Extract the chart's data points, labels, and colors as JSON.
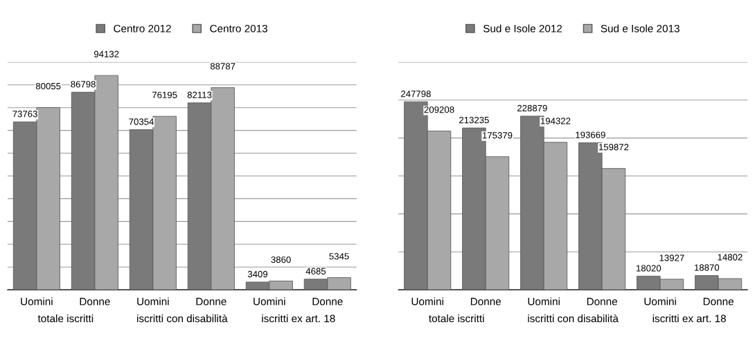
{
  "chart_data": [
    {
      "type": "bar",
      "categories": [
        "Uomini",
        "Donne",
        "Uomini",
        "Donne",
        "Uomini",
        "Donne"
      ],
      "series": [
        {
          "name": "Centro 2012",
          "color": "#7a7a7a",
          "values": [
            73763,
            86798,
            70354,
            82113,
            3409,
            4685
          ]
        },
        {
          "name": "Centro 2013",
          "color": "#a8a8a8",
          "values": [
            80055,
            94132,
            76195,
            88787,
            3860,
            5345
          ]
        }
      ],
      "annotations": [
        "totale iscritti",
        "iscritti con disabilità",
        "iscritti ex art. 18"
      ],
      "ylim": [
        0,
        100000
      ],
      "yticks": [
        {
          "value": 0,
          "label": null
        },
        {
          "value": 10000,
          "label": null
        },
        {
          "value": 20000,
          "label": null
        },
        {
          "value": 30000,
          "label": null
        },
        {
          "value": 40000,
          "label": null
        },
        {
          "value": 50000,
          "label": null
        },
        {
          "value": 60000,
          "label": null
        },
        {
          "value": 70000,
          "label": null
        },
        {
          "value": 80000,
          "label": null
        },
        {
          "value": 90000,
          "label": null
        },
        {
          "value": 100000,
          "label": null
        }
      ],
      "tick_labels": "x",
      "grid": "y",
      "legend": "top",
      "data_labels": true
    },
    {
      "type": "bar",
      "categories": [
        "Uomini",
        "Donne",
        "Uomini",
        "Donne",
        "Uomini",
        "Donne"
      ],
      "series": [
        {
          "name": "Sud e Isole 2012",
          "color": "#7a7a7a",
          "values": [
            247798,
            213235,
            228879,
            193669,
            18020,
            18870
          ]
        },
        {
          "name": "Sud e Isole 2013",
          "color": "#a8a8a8",
          "values": [
            209208,
            175379,
            194322,
            159872,
            13927,
            14802
          ]
        }
      ],
      "annotations": [
        "totale iscritti",
        "iscritti con disabilità",
        "iscritti ex art. 18"
      ],
      "ylim": [
        0,
        300000
      ],
      "yticks": [
        {
          "value": 0,
          "label": null
        },
        {
          "value": 50000,
          "label": null
        },
        {
          "value": 100000,
          "label": null
        },
        {
          "value": 150000,
          "label": null
        },
        {
          "value": 200000,
          "label": null
        },
        {
          "value": 250000,
          "label": null
        },
        {
          "value": 300000,
          "label": null
        }
      ],
      "tick_labels": "x",
      "grid": "y",
      "legend": "top",
      "data_labels": true
    }
  ]
}
